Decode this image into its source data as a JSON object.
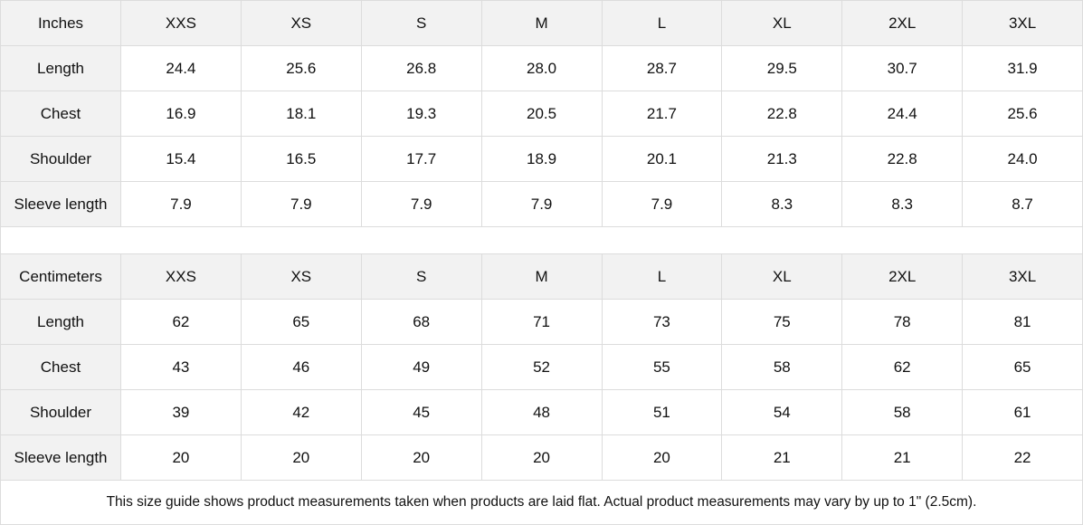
{
  "sizes": [
    "XXS",
    "XS",
    "S",
    "M",
    "L",
    "XL",
    "2XL",
    "3XL"
  ],
  "tables": [
    {
      "unit": "Inches",
      "rows": [
        {
          "label": "Length",
          "values": [
            "24.4",
            "25.6",
            "26.8",
            "28.0",
            "28.7",
            "29.5",
            "30.7",
            "31.9"
          ]
        },
        {
          "label": "Chest",
          "values": [
            "16.9",
            "18.1",
            "19.3",
            "20.5",
            "21.7",
            "22.8",
            "24.4",
            "25.6"
          ]
        },
        {
          "label": "Shoulder",
          "values": [
            "15.4",
            "16.5",
            "17.7",
            "18.9",
            "20.1",
            "21.3",
            "22.8",
            "24.0"
          ]
        },
        {
          "label": "Sleeve length",
          "values": [
            "7.9",
            "7.9",
            "7.9",
            "7.9",
            "7.9",
            "8.3",
            "8.3",
            "8.7"
          ]
        }
      ]
    },
    {
      "unit": "Centimeters",
      "rows": [
        {
          "label": "Length",
          "values": [
            "62",
            "65",
            "68",
            "71",
            "73",
            "75",
            "78",
            "81"
          ]
        },
        {
          "label": "Chest",
          "values": [
            "43",
            "46",
            "49",
            "52",
            "55",
            "58",
            "62",
            "65"
          ]
        },
        {
          "label": "Shoulder",
          "values": [
            "39",
            "42",
            "45",
            "48",
            "51",
            "54",
            "58",
            "61"
          ]
        },
        {
          "label": "Sleeve length",
          "values": [
            "20",
            "20",
            "20",
            "20",
            "20",
            "21",
            "21",
            "22"
          ]
        }
      ]
    }
  ],
  "note": "This size guide shows product measurements taken when products are laid flat.  Actual product measurements may vary by up to 1\" (2.5cm)."
}
